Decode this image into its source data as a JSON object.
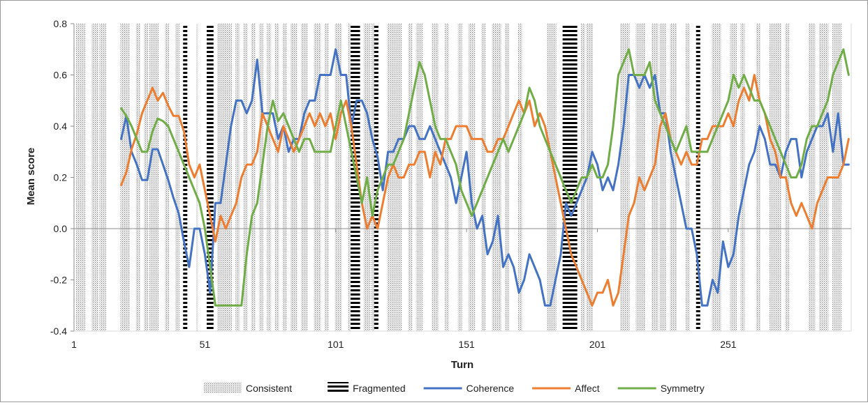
{
  "chart_data": {
    "type": "line",
    "xlabel": "Turn",
    "ylabel": "Mean score",
    "xlim": [
      1,
      298
    ],
    "ylim": [
      -0.4,
      0.8
    ],
    "x_ticks": [
      "1",
      "51",
      "101",
      "151",
      "201",
      "251"
    ],
    "y_ticks": [
      "0.8",
      "0.6",
      "0.4",
      "0.2",
      "0.0",
      "-0.2",
      "-0.4"
    ],
    "grid": false,
    "legend_position": "bottom",
    "legend": [
      {
        "label": "Consistent",
        "kind": "hatch-fine",
        "color": "#999999"
      },
      {
        "label": "Fragmented",
        "kind": "hatch-bold",
        "color": "#000000"
      },
      {
        "label": "Coherence",
        "kind": "line",
        "color": "#4472C4"
      },
      {
        "label": "Affect",
        "kind": "line",
        "color": "#ED7D31"
      },
      {
        "label": "Symmetry",
        "kind": "line",
        "color": "#70AD47"
      }
    ],
    "consistent_regions": [
      [
        2,
        5
      ],
      [
        8,
        10
      ],
      [
        11,
        13
      ],
      [
        19,
        22
      ],
      [
        25,
        26
      ],
      [
        28,
        29
      ],
      [
        30,
        33
      ],
      [
        36,
        37
      ],
      [
        40,
        41
      ],
      [
        48,
        48
      ],
      [
        56,
        61
      ],
      [
        63,
        64
      ],
      [
        66,
        67
      ],
      [
        69,
        70
      ],
      [
        72,
        73
      ],
      [
        75,
        76
      ],
      [
        78,
        79
      ],
      [
        81,
        82
      ],
      [
        84,
        86
      ],
      [
        88,
        90
      ],
      [
        93,
        95
      ],
      [
        97,
        98
      ],
      [
        101,
        103
      ],
      [
        106,
        107
      ],
      [
        112,
        114
      ],
      [
        115,
        117
      ],
      [
        121,
        126
      ],
      [
        129,
        130
      ],
      [
        132,
        134
      ],
      [
        138,
        140
      ],
      [
        143,
        144
      ],
      [
        148,
        149
      ],
      [
        152,
        154
      ],
      [
        157,
        158
      ],
      [
        161,
        164
      ],
      [
        166,
        167
      ],
      [
        171,
        172
      ],
      [
        182,
        185
      ],
      [
        195,
        196
      ],
      [
        197,
        199
      ],
      [
        210,
        213
      ],
      [
        216,
        219
      ],
      [
        222,
        224
      ],
      [
        225,
        227
      ],
      [
        229,
        231
      ],
      [
        235,
        236
      ],
      [
        245,
        248
      ],
      [
        252,
        254
      ],
      [
        256,
        257
      ],
      [
        262,
        263
      ],
      [
        267,
        271
      ],
      [
        273,
        274
      ],
      [
        282,
        284
      ],
      [
        286,
        289
      ],
      [
        291,
        294
      ]
    ],
    "fragmented_regions": [
      [
        43,
        44
      ],
      [
        52,
        54
      ],
      [
        107,
        110
      ],
      [
        116,
        117
      ],
      [
        188,
        193
      ],
      [
        239,
        240
      ]
    ],
    "series": [
      {
        "name": "Coherence",
        "color": "#4472C4",
        "x": [
          19,
          21,
          23,
          25,
          27,
          29,
          31,
          33,
          35,
          37,
          39,
          41,
          43,
          45,
          47,
          49,
          51,
          53,
          55,
          57,
          59,
          61,
          63,
          65,
          67,
          69,
          71,
          73,
          75,
          77,
          79,
          81,
          83,
          85,
          87,
          89,
          91,
          93,
          95,
          97,
          99,
          101,
          103,
          105,
          107,
          109,
          111,
          113,
          115,
          117,
          119,
          121,
          123,
          125,
          127,
          129,
          131,
          133,
          135,
          137,
          139,
          141,
          143,
          145,
          147,
          149,
          151,
          153,
          155,
          157,
          159,
          161,
          163,
          165,
          167,
          169,
          171,
          173,
          175,
          177,
          179,
          181,
          183,
          185,
          187,
          189,
          191,
          193,
          195,
          197,
          199,
          201,
          203,
          205,
          207,
          209,
          211,
          213,
          215,
          217,
          219,
          221,
          223,
          225,
          227,
          229,
          231,
          233,
          235,
          237,
          239,
          241,
          243,
          245,
          247,
          249,
          251,
          253,
          255,
          257,
          259,
          261,
          263,
          265,
          267,
          269,
          271,
          273,
          275,
          277,
          279,
          281,
          283,
          285,
          287,
          289,
          291,
          293,
          295,
          297
        ],
        "values": [
          0.35,
          0.44,
          0.3,
          0.25,
          0.19,
          0.19,
          0.31,
          0.31,
          0.25,
          0.19,
          0.12,
          0.06,
          -0.05,
          -0.15,
          0.0,
          0.0,
          -0.1,
          -0.25,
          0.1,
          0.1,
          0.25,
          0.4,
          0.5,
          0.5,
          0.45,
          0.5,
          0.66,
          0.45,
          0.45,
          0.45,
          0.35,
          0.4,
          0.3,
          0.35,
          0.35,
          0.45,
          0.5,
          0.5,
          0.6,
          0.6,
          0.6,
          0.7,
          0.6,
          0.6,
          0.4,
          0.5,
          0.5,
          0.45,
          0.35,
          0.28,
          0.15,
          0.3,
          0.3,
          0.35,
          0.35,
          0.4,
          0.4,
          0.35,
          0.35,
          0.4,
          0.35,
          0.3,
          0.25,
          0.2,
          0.1,
          0.2,
          0.3,
          0.1,
          0.0,
          0.05,
          -0.1,
          -0.05,
          0.05,
          -0.15,
          -0.1,
          -0.15,
          -0.25,
          -0.2,
          -0.1,
          -0.15,
          -0.2,
          -0.3,
          -0.3,
          -0.2,
          -0.1,
          0.1,
          0.05,
          0.1,
          0.15,
          0.2,
          0.3,
          0.25,
          0.15,
          0.2,
          0.15,
          0.25,
          0.4,
          0.6,
          0.6,
          0.55,
          0.6,
          0.55,
          0.6,
          0.45,
          0.45,
          0.3,
          0.2,
          0.1,
          0.0,
          0.0,
          -0.1,
          -0.3,
          -0.3,
          -0.2,
          -0.25,
          -0.05,
          -0.15,
          -0.1,
          0.05,
          0.15,
          0.25,
          0.3,
          0.4,
          0.35,
          0.25,
          0.25,
          0.2,
          0.3,
          0.35,
          0.35,
          0.2,
          0.3,
          0.35,
          0.4,
          0.4,
          0.45,
          0.3,
          0.45,
          0.25,
          0.25
        ]
      },
      {
        "name": "Affect",
        "color": "#ED7D31",
        "x": [
          19,
          21,
          23,
          25,
          27,
          29,
          31,
          33,
          35,
          37,
          39,
          41,
          43,
          45,
          47,
          49,
          51,
          53,
          55,
          57,
          59,
          61,
          63,
          65,
          67,
          69,
          71,
          73,
          75,
          77,
          79,
          81,
          83,
          85,
          87,
          89,
          91,
          93,
          95,
          97,
          99,
          101,
          103,
          105,
          107,
          109,
          111,
          113,
          115,
          117,
          119,
          121,
          123,
          125,
          127,
          129,
          131,
          133,
          135,
          137,
          139,
          141,
          143,
          145,
          147,
          149,
          151,
          153,
          155,
          157,
          159,
          161,
          163,
          165,
          167,
          169,
          171,
          173,
          175,
          177,
          179,
          181,
          183,
          185,
          187,
          189,
          191,
          193,
          195,
          197,
          199,
          201,
          203,
          205,
          207,
          209,
          211,
          213,
          215,
          217,
          219,
          221,
          223,
          225,
          227,
          229,
          231,
          233,
          235,
          237,
          239,
          241,
          243,
          245,
          247,
          249,
          251,
          253,
          255,
          257,
          259,
          261,
          263,
          265,
          267,
          269,
          271,
          273,
          275,
          277,
          279,
          281,
          283,
          285,
          287,
          289,
          291,
          293,
          295,
          297
        ],
        "values": [
          0.17,
          0.22,
          0.31,
          0.37,
          0.45,
          0.5,
          0.55,
          0.5,
          0.53,
          0.48,
          0.44,
          0.44,
          0.38,
          0.25,
          0.2,
          0.25,
          0.15,
          0.05,
          -0.05,
          0.05,
          0.0,
          0.05,
          0.1,
          0.2,
          0.25,
          0.25,
          0.3,
          0.45,
          0.4,
          0.35,
          0.3,
          0.4,
          0.35,
          0.3,
          0.35,
          0.4,
          0.45,
          0.4,
          0.45,
          0.4,
          0.45,
          0.35,
          0.45,
          0.5,
          0.4,
          0.25,
          0.1,
          0.0,
          0.05,
          0.0,
          0.1,
          0.2,
          0.25,
          0.2,
          0.2,
          0.25,
          0.25,
          0.3,
          0.3,
          0.2,
          0.3,
          0.25,
          0.35,
          0.35,
          0.4,
          0.4,
          0.4,
          0.35,
          0.35,
          0.35,
          0.3,
          0.3,
          0.35,
          0.35,
          0.4,
          0.45,
          0.5,
          0.45,
          0.5,
          0.4,
          0.45,
          0.4,
          0.3,
          0.2,
          0.1,
          0.0,
          -0.1,
          -0.15,
          -0.2,
          -0.25,
          -0.3,
          -0.25,
          -0.25,
          -0.2,
          -0.3,
          -0.25,
          -0.1,
          0.05,
          0.1,
          0.2,
          0.15,
          0.2,
          0.25,
          0.4,
          0.45,
          0.35,
          0.3,
          0.25,
          0.3,
          0.25,
          0.25,
          0.35,
          0.35,
          0.4,
          0.4,
          0.4,
          0.45,
          0.4,
          0.5,
          0.55,
          0.5,
          0.6,
          0.5,
          0.45,
          0.35,
          0.3,
          0.2,
          0.2,
          0.1,
          0.05,
          0.1,
          0.05,
          0.0,
          0.1,
          0.15,
          0.2,
          0.2,
          0.2,
          0.25,
          0.35
        ]
      },
      {
        "name": "Symmetry",
        "color": "#70AD47",
        "x": [
          19,
          21,
          23,
          25,
          27,
          29,
          31,
          33,
          35,
          37,
          39,
          41,
          43,
          45,
          47,
          49,
          51,
          53,
          55,
          57,
          59,
          61,
          63,
          65,
          67,
          69,
          71,
          73,
          75,
          77,
          79,
          81,
          83,
          85,
          87,
          89,
          91,
          93,
          95,
          97,
          99,
          101,
          103,
          105,
          107,
          109,
          111,
          113,
          115,
          117,
          119,
          121,
          123,
          125,
          127,
          129,
          131,
          133,
          135,
          137,
          139,
          141,
          143,
          145,
          147,
          149,
          151,
          153,
          155,
          157,
          159,
          161,
          163,
          165,
          167,
          169,
          171,
          173,
          175,
          177,
          179,
          181,
          183,
          185,
          187,
          189,
          191,
          193,
          195,
          197,
          199,
          201,
          203,
          205,
          207,
          209,
          211,
          213,
          215,
          217,
          219,
          221,
          223,
          225,
          227,
          229,
          231,
          233,
          235,
          237,
          239,
          241,
          243,
          245,
          247,
          249,
          251,
          253,
          255,
          257,
          259,
          261,
          263,
          265,
          267,
          269,
          271,
          273,
          275,
          277,
          279,
          281,
          283,
          285,
          287,
          289,
          291,
          293,
          295,
          297
        ],
        "values": [
          0.47,
          0.44,
          0.4,
          0.35,
          0.3,
          0.3,
          0.38,
          0.43,
          0.42,
          0.4,
          0.35,
          0.3,
          0.25,
          0.2,
          0.15,
          0.1,
          0.0,
          -0.15,
          -0.3,
          -0.3,
          -0.3,
          -0.3,
          -0.3,
          -0.3,
          -0.1,
          0.05,
          0.1,
          0.25,
          0.4,
          0.5,
          0.42,
          0.45,
          0.4,
          0.35,
          0.3,
          0.35,
          0.35,
          0.3,
          0.3,
          0.3,
          0.3,
          0.4,
          0.5,
          0.4,
          0.3,
          0.2,
          0.1,
          0.2,
          0.05,
          0.15,
          0.2,
          0.25,
          0.25,
          0.3,
          0.35,
          0.45,
          0.55,
          0.65,
          0.6,
          0.5,
          0.4,
          0.35,
          0.35,
          0.3,
          0.25,
          0.15,
          0.1,
          0.05,
          0.1,
          0.15,
          0.2,
          0.25,
          0.3,
          0.35,
          0.3,
          0.35,
          0.4,
          0.45,
          0.55,
          0.5,
          0.4,
          0.35,
          0.3,
          0.25,
          0.2,
          0.15,
          0.1,
          0.15,
          0.2,
          0.2,
          0.25,
          0.2,
          0.2,
          0.25,
          0.4,
          0.6,
          0.65,
          0.7,
          0.6,
          0.6,
          0.6,
          0.65,
          0.5,
          0.45,
          0.4,
          0.35,
          0.3,
          0.35,
          0.4,
          0.3,
          0.3,
          0.3,
          0.3,
          0.35,
          0.4,
          0.45,
          0.5,
          0.6,
          0.55,
          0.6,
          0.55,
          0.5,
          0.5,
          0.45,
          0.4,
          0.35,
          0.3,
          0.25,
          0.2,
          0.2,
          0.25,
          0.35,
          0.4,
          0.4,
          0.45,
          0.5,
          0.6,
          0.65,
          0.7,
          0.6
        ]
      }
    ]
  }
}
